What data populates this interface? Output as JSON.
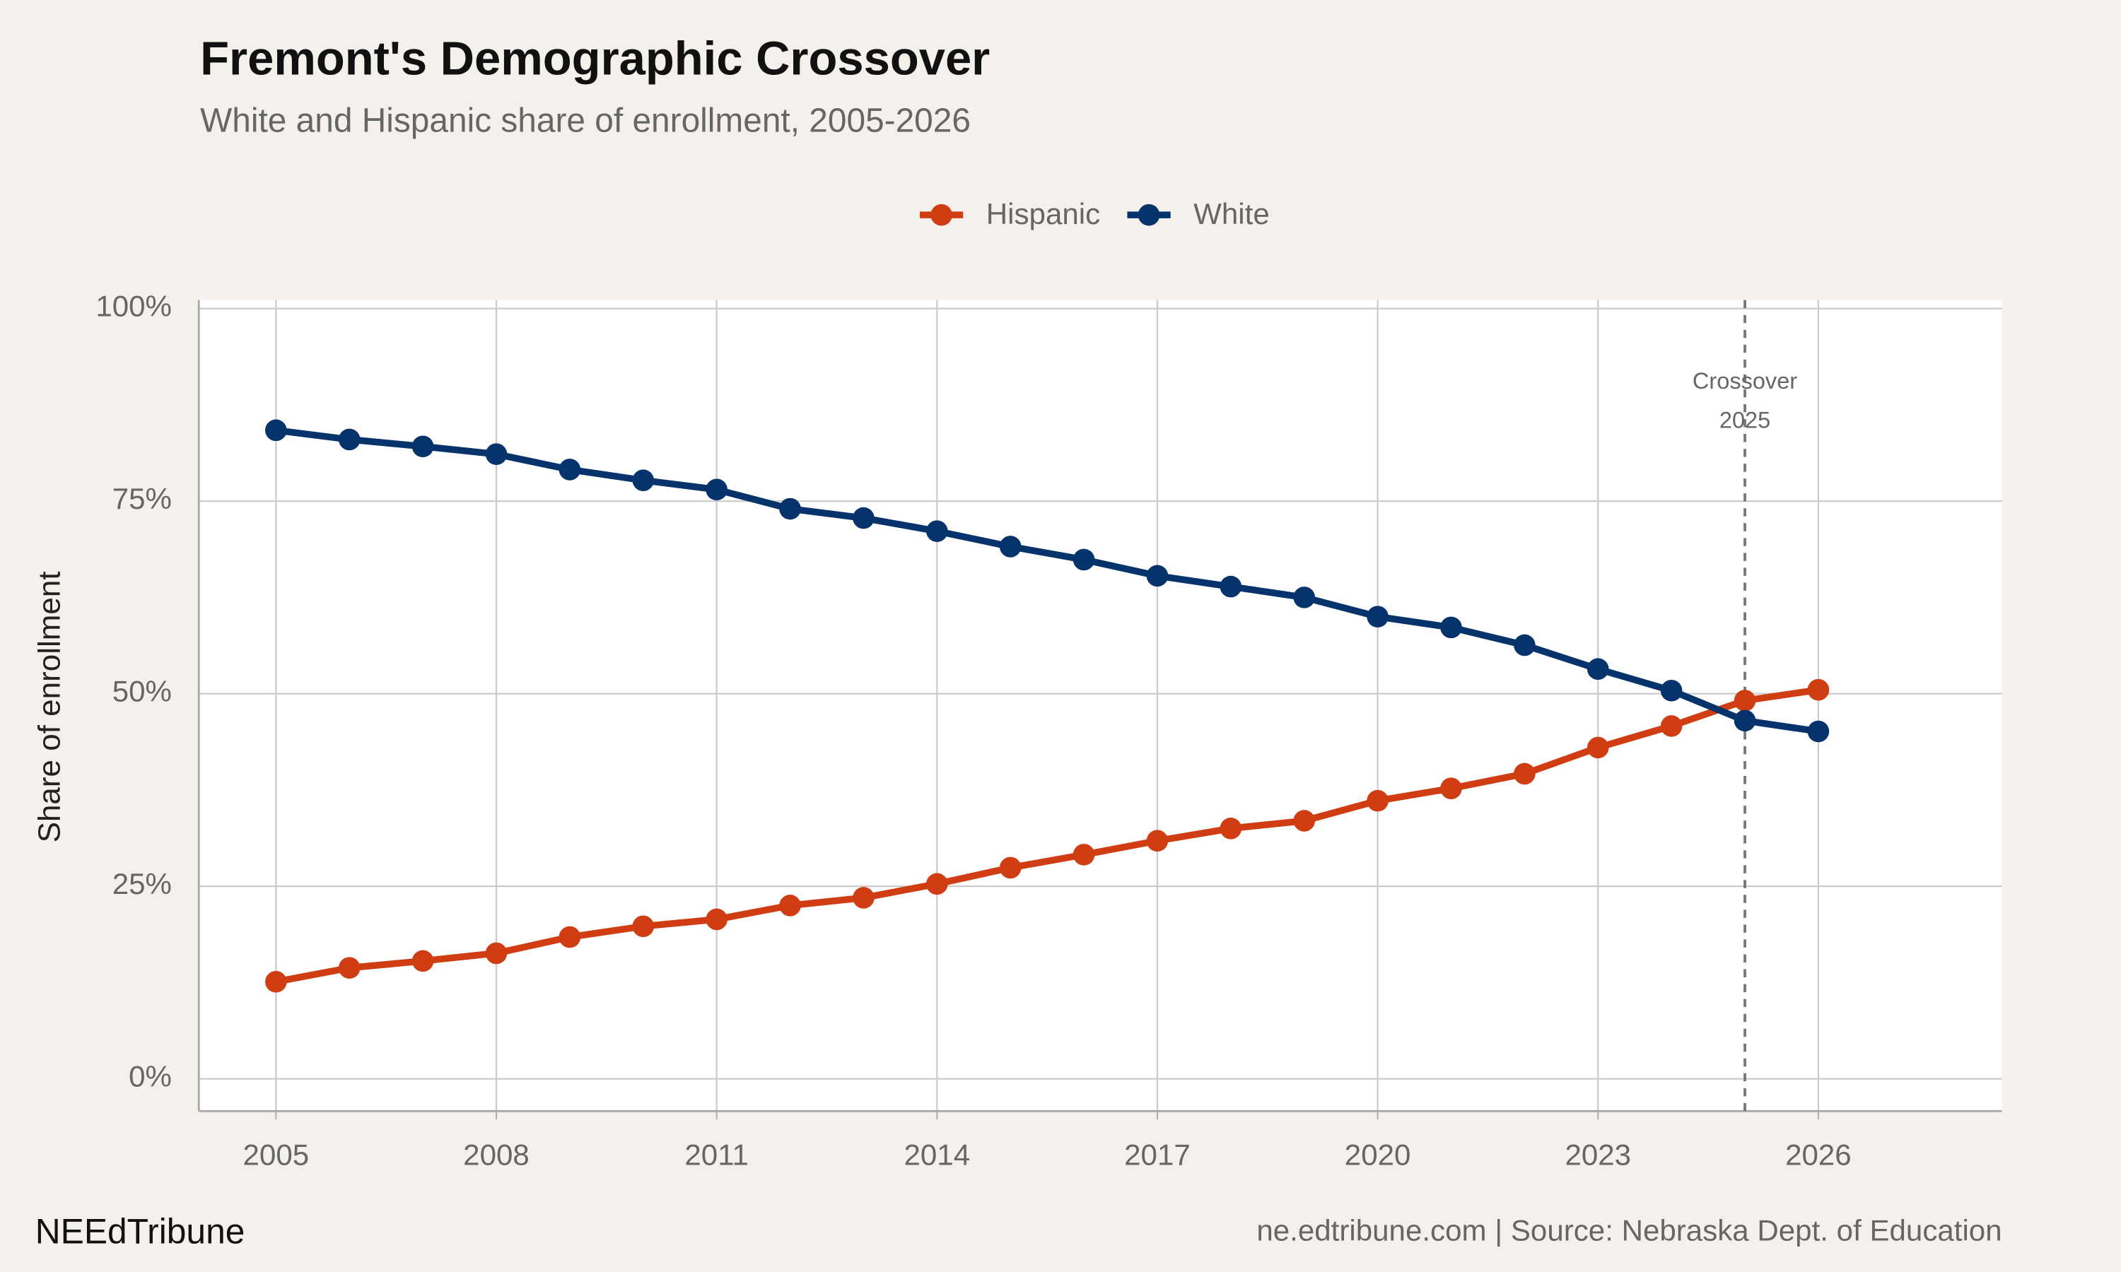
{
  "chart_data": {
    "type": "line",
    "title": "Fremont's Demographic Crossover",
    "subtitle": "White and Hispanic share of enrollment, 2005-2026",
    "y_label": "Share of enrollment",
    "x": [
      2005,
      2006,
      2007,
      2008,
      2009,
      2010,
      2011,
      2012,
      2013,
      2014,
      2015,
      2016,
      2017,
      2018,
      2019,
      2020,
      2021,
      2022,
      2023,
      2024,
      2025,
      2026
    ],
    "series": [
      {
        "name": "Hispanic",
        "color": "#d13d12",
        "values": [
          12.6,
          14.4,
          15.3,
          16.3,
          18.4,
          19.8,
          20.7,
          22.5,
          23.5,
          25.3,
          27.4,
          29.1,
          30.9,
          32.5,
          33.5,
          36.1,
          37.7,
          39.6,
          43.0,
          45.8,
          49.1,
          50.5
        ]
      },
      {
        "name": "White",
        "color": "#06336b",
        "values": [
          84.2,
          83.0,
          82.1,
          81.1,
          79.1,
          77.7,
          76.5,
          74.0,
          72.8,
          71.1,
          69.1,
          67.4,
          65.3,
          63.9,
          62.5,
          60.0,
          58.6,
          56.3,
          53.2,
          50.4,
          46.5,
          45.1
        ]
      }
    ],
    "xlim": [
      2003.95,
      2028.5
    ],
    "xticks": [
      2005,
      2008,
      2011,
      2014,
      2017,
      2020,
      2023,
      2026
    ],
    "ylim": [
      -4.2,
      101.1
    ],
    "yticks": [
      {
        "value": 0,
        "label": "0%"
      },
      {
        "value": 25,
        "label": "25%"
      },
      {
        "value": 50,
        "label": "50%"
      },
      {
        "value": 75,
        "label": "75%"
      },
      {
        "value": 100,
        "label": "100%"
      }
    ],
    "grid": true,
    "legend": "top",
    "annotation": {
      "x": 2025,
      "lines": [
        "Crossover",
        "2025"
      ]
    },
    "brand": "NEEdTribune",
    "source": "ne.edtribune.com | Source: Nebraska Dept. of Education"
  }
}
